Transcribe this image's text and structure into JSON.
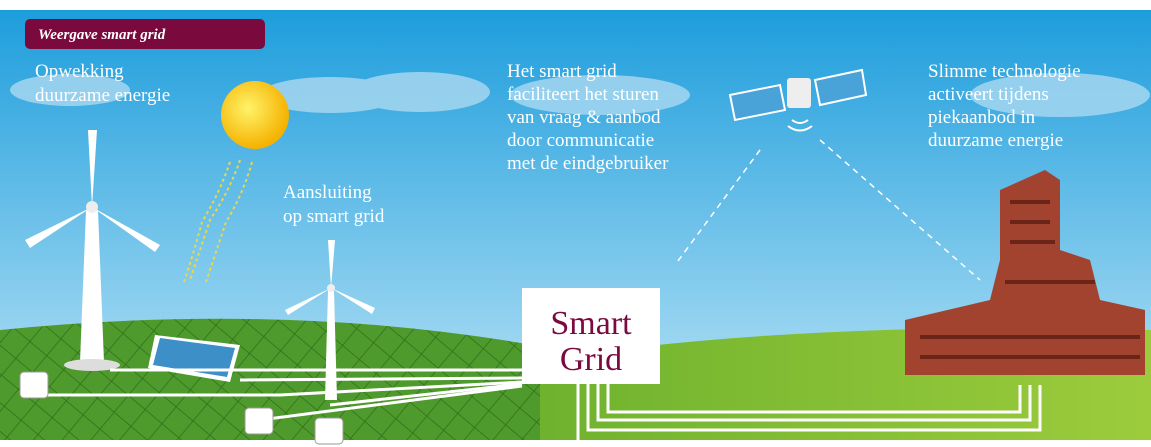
{
  "header": {
    "title": "Weergave smart grid"
  },
  "labels": [
    {
      "lines": [
        "Opwekking",
        "duurzame energie"
      ]
    },
    {
      "lines": [
        "Aansluiting",
        "op smart grid"
      ]
    },
    {
      "lines": [
        "Het smart grid",
        "faciliteert het sturen",
        "van vraag & aanbod",
        "door communicatie",
        "met de eindgebruiker"
      ]
    },
    {
      "lines": [
        "Slimme technologie",
        "activeert tijdens",
        "piekaanbod in",
        "duurzame energie"
      ]
    }
  ],
  "hub": {
    "lines": [
      "Smart",
      "Grid"
    ]
  }
}
